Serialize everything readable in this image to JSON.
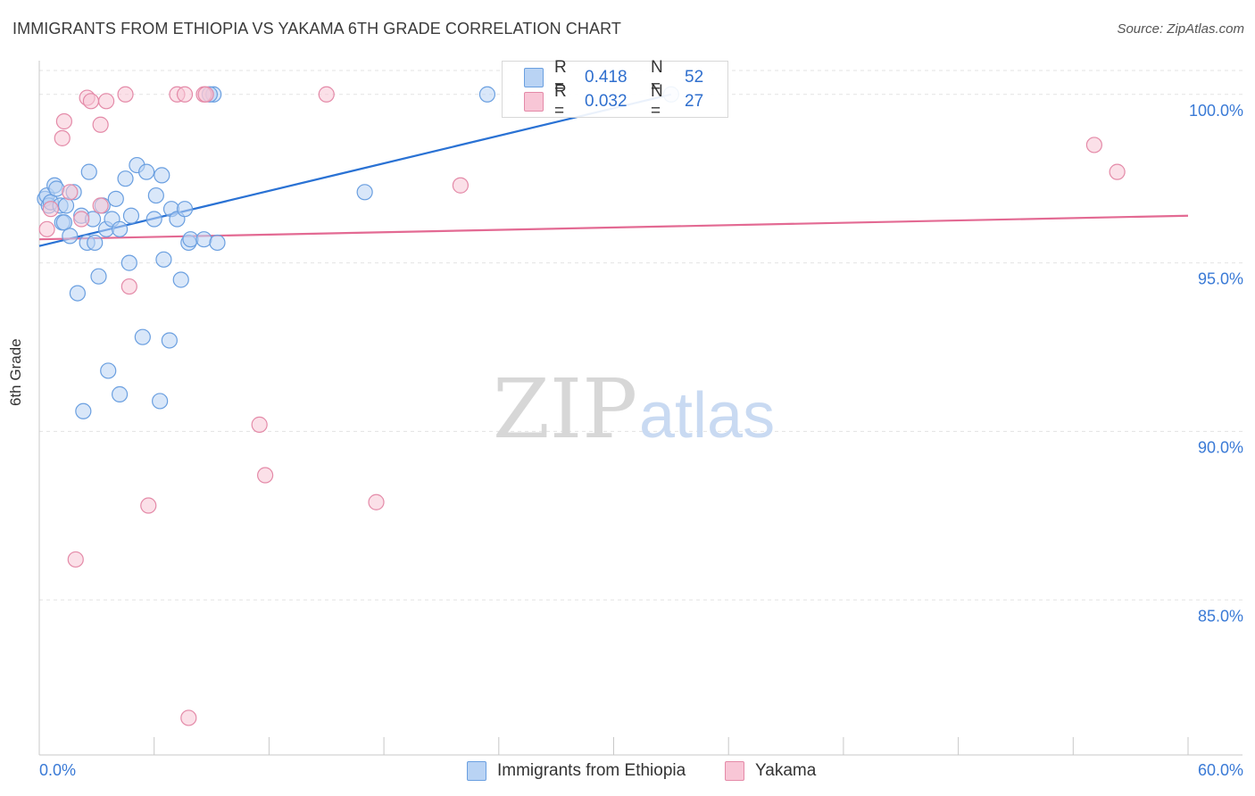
{
  "header": {
    "title": "IMMIGRANTS FROM ETHIOPIA VS YAKAMA 6TH GRADE CORRELATION CHART",
    "source": "Source: ZipAtlas.com"
  },
  "watermark": {
    "zip": "ZIP",
    "atlas": "atlas"
  },
  "legend": {
    "series": [
      {
        "label": "R =",
        "r_value": "0.418",
        "n_label": "N =",
        "n_value": "52"
      },
      {
        "label": "R =",
        "r_value": "0.032",
        "n_label": "N =",
        "n_value": "27"
      }
    ]
  },
  "bottom_legend": [
    "Immigrants from Ethiopia",
    "Yakama"
  ],
  "colors": {
    "blue_fill": "#b9d3f4",
    "blue_stroke": "#6a9fe0",
    "blue_line": "#2a72d4",
    "pink_fill": "#f8c6d6",
    "pink_stroke": "#e48aa8",
    "pink_line": "#e36a93",
    "grid": "#e3e3e3",
    "axis_text": "#3a7ad6"
  },
  "chart_data": {
    "type": "scatter",
    "title": "IMMIGRANTS FROM ETHIOPIA VS YAKAMA 6TH GRADE CORRELATION CHART",
    "xlabel": "",
    "ylabel": "6th Grade",
    "xlim": [
      0,
      60
    ],
    "ylim": [
      80.4,
      101.0
    ],
    "x_tick_labels": [
      "0.0%",
      "60.0%"
    ],
    "y_ticks": [
      85,
      90,
      95,
      100
    ],
    "y_tick_labels": [
      "85.0%",
      "90.0%",
      "95.0%",
      "100.0%"
    ],
    "grid": true,
    "series": [
      {
        "name": "Immigrants from Ethiopia",
        "color": "blue",
        "points": [
          [
            0.3,
            96.9
          ],
          [
            0.4,
            97.0
          ],
          [
            0.5,
            96.7
          ],
          [
            0.6,
            96.8
          ],
          [
            0.8,
            97.3
          ],
          [
            0.9,
            97.2
          ],
          [
            1.1,
            96.7
          ],
          [
            1.2,
            96.2
          ],
          [
            1.3,
            96.2
          ],
          [
            1.4,
            96.7
          ],
          [
            1.6,
            95.8
          ],
          [
            1.8,
            97.1
          ],
          [
            2.0,
            94.1
          ],
          [
            2.2,
            96.4
          ],
          [
            2.3,
            90.6
          ],
          [
            2.5,
            95.6
          ],
          [
            2.6,
            97.7
          ],
          [
            2.8,
            96.3
          ],
          [
            2.9,
            95.6
          ],
          [
            3.1,
            94.6
          ],
          [
            3.3,
            96.7
          ],
          [
            3.5,
            96.0
          ],
          [
            3.6,
            91.8
          ],
          [
            3.8,
            96.3
          ],
          [
            4.0,
            96.9
          ],
          [
            4.2,
            96.0
          ],
          [
            4.2,
            91.1
          ],
          [
            4.5,
            97.5
          ],
          [
            4.7,
            95.0
          ],
          [
            4.8,
            96.4
          ],
          [
            5.1,
            97.9
          ],
          [
            5.4,
            92.8
          ],
          [
            5.6,
            97.7
          ],
          [
            6.0,
            96.3
          ],
          [
            6.1,
            97.0
          ],
          [
            6.3,
            90.9
          ],
          [
            6.5,
            95.1
          ],
          [
            6.8,
            92.7
          ],
          [
            6.9,
            96.6
          ],
          [
            7.2,
            96.3
          ],
          [
            7.4,
            94.5
          ],
          [
            7.6,
            96.6
          ],
          [
            7.8,
            95.6
          ],
          [
            7.9,
            95.7
          ],
          [
            8.6,
            95.7
          ],
          [
            9.1,
            100.0
          ],
          [
            9.3,
            95.6
          ],
          [
            8.9,
            100.0
          ],
          [
            6.4,
            97.6
          ],
          [
            17.0,
            97.1
          ],
          [
            23.4,
            100.0
          ],
          [
            33.0,
            100.0
          ]
        ],
        "trendline": {
          "x": [
            0.0,
            33.0
          ],
          "y": [
            95.5,
            100.0
          ]
        }
      },
      {
        "name": "Yakama",
        "color": "pink",
        "points": [
          [
            0.4,
            96.0
          ],
          [
            0.6,
            96.6
          ],
          [
            1.2,
            98.7
          ],
          [
            1.3,
            99.2
          ],
          [
            1.6,
            97.1
          ],
          [
            1.9,
            86.2
          ],
          [
            2.2,
            96.3
          ],
          [
            2.5,
            99.9
          ],
          [
            2.7,
            99.8
          ],
          [
            3.2,
            99.1
          ],
          [
            3.5,
            99.8
          ],
          [
            3.2,
            96.7
          ],
          [
            4.5,
            100.0
          ],
          [
            4.7,
            94.3
          ],
          [
            5.7,
            87.8
          ],
          [
            7.2,
            100.0
          ],
          [
            7.6,
            100.0
          ],
          [
            7.8,
            81.5
          ],
          [
            8.6,
            100.0
          ],
          [
            11.5,
            90.2
          ],
          [
            11.8,
            88.7
          ],
          [
            15.0,
            100.0
          ],
          [
            17.6,
            87.9
          ],
          [
            22.0,
            97.3
          ],
          [
            55.1,
            98.5
          ],
          [
            56.3,
            97.7
          ],
          [
            8.7,
            100.0
          ]
        ],
        "trendline": {
          "x": [
            0.0,
            60.0
          ],
          "y": [
            95.7,
            96.4
          ]
        }
      }
    ]
  }
}
